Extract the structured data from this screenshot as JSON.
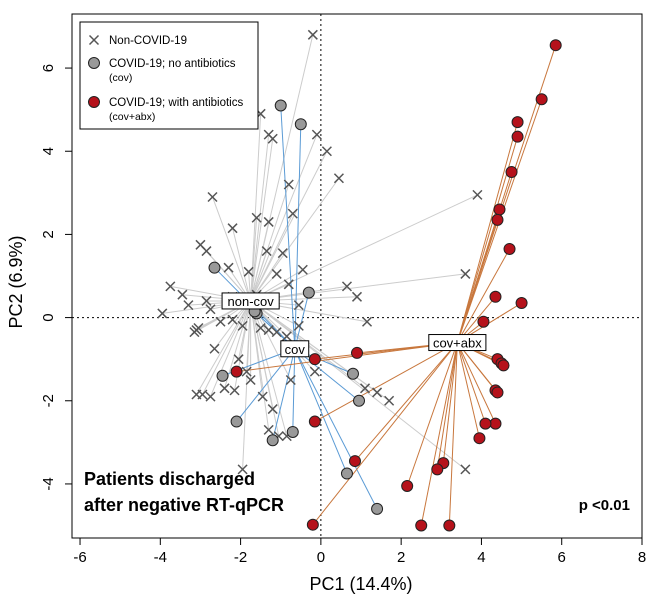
{
  "chart_data": {
    "type": "scatter",
    "xlabel": "PC1 (14.4%)",
    "ylabel": "PC2 (6.9%)",
    "xlim": [
      -6.2,
      8.0
    ],
    "ylim": [
      -5.3,
      7.3
    ],
    "xticks": [
      -6,
      -4,
      -2,
      0,
      2,
      4,
      6,
      8
    ],
    "yticks": [
      -4,
      -2,
      0,
      2,
      4,
      6
    ],
    "reference_lines": {
      "x": 0,
      "y": 0,
      "style": "dotted"
    },
    "annotation": "Patients discharged\nafter negative RT-qPCR",
    "annotation_lines": [
      "Patients discharged",
      "after negative RT-qPCR"
    ],
    "pvalue": "p <0.01",
    "legend": {
      "placement": "top-left",
      "entries": [
        {
          "label": "Non-COVID-19",
          "marker": "x"
        },
        {
          "label": "COVID-19; no antibiotics\n(cov)",
          "marker": "gray-circle"
        },
        {
          "label": "COVID-19; with antibiotics\n(cov+abx)",
          "marker": "red-circle"
        }
      ]
    },
    "series": [
      {
        "name": "Non-COVID-19",
        "marker": "x",
        "color": "#555555",
        "line_color": "#cccccc",
        "centroid": {
          "label": "non-cov",
          "x": -1.75,
          "y": 0.4
        },
        "points": [
          [
            -0.2,
            6.8
          ],
          [
            -1.5,
            4.9
          ],
          [
            -1.3,
            4.4
          ],
          [
            -1.2,
            4.3
          ],
          [
            -0.1,
            4.4
          ],
          [
            0.15,
            4.0
          ],
          [
            0.45,
            3.35
          ],
          [
            -0.8,
            3.2
          ],
          [
            -2.7,
            2.9
          ],
          [
            -1.6,
            2.4
          ],
          [
            -1.3,
            2.3
          ],
          [
            -0.7,
            2.5
          ],
          [
            -2.2,
            2.15
          ],
          [
            -1.35,
            1.6
          ],
          [
            -0.95,
            1.55
          ],
          [
            -3.0,
            1.75
          ],
          [
            -2.85,
            1.6
          ],
          [
            -2.3,
            1.2
          ],
          [
            -1.8,
            1.1
          ],
          [
            -1.1,
            1.05
          ],
          [
            -0.45,
            1.15
          ],
          [
            -3.75,
            0.75
          ],
          [
            -3.45,
            0.55
          ],
          [
            -3.3,
            0.3
          ],
          [
            -2.85,
            0.4
          ],
          [
            -2.75,
            0.2
          ],
          [
            -2.2,
            0.5
          ],
          [
            -1.9,
            0.35
          ],
          [
            -1.6,
            0.55
          ],
          [
            -0.8,
            0.8
          ],
          [
            -0.55,
            0.3
          ],
          [
            -3.95,
            0.1
          ],
          [
            -3.1,
            -0.3
          ],
          [
            -3.15,
            -0.35
          ],
          [
            -3.05,
            -0.25
          ],
          [
            -2.5,
            -0.1
          ],
          [
            -2.2,
            -0.05
          ],
          [
            -1.95,
            -0.2
          ],
          [
            -1.5,
            -0.25
          ],
          [
            -1.3,
            -0.3
          ],
          [
            -1.1,
            -0.35
          ],
          [
            -0.85,
            -0.45
          ],
          [
            -0.55,
            -0.2
          ],
          [
            -2.65,
            -0.75
          ],
          [
            -2.05,
            -1.0
          ],
          [
            -1.85,
            -1.3
          ],
          [
            -1.75,
            -1.5
          ],
          [
            -2.4,
            -1.7
          ],
          [
            -2.15,
            -1.75
          ],
          [
            -2.95,
            -1.85
          ],
          [
            -3.1,
            -1.85
          ],
          [
            -2.75,
            -1.9
          ],
          [
            -1.45,
            -1.9
          ],
          [
            -1.2,
            -2.2
          ],
          [
            -1.3,
            -2.7
          ],
          [
            -1.05,
            -2.85
          ],
          [
            -0.85,
            -2.85
          ],
          [
            -1.95,
            -3.65
          ],
          [
            -0.75,
            -1.5
          ],
          [
            -0.15,
            -1.3
          ],
          [
            0.65,
            0.75
          ],
          [
            0.9,
            0.5
          ],
          [
            1.15,
            -0.1
          ],
          [
            1.1,
            -1.7
          ],
          [
            1.4,
            -1.8
          ],
          [
            1.7,
            -2.0
          ],
          [
            3.9,
            2.95
          ],
          [
            3.6,
            1.05
          ],
          [
            3.6,
            -3.65
          ]
        ]
      },
      {
        "name": "COVID-19; no antibiotics",
        "marker": "gray-circle",
        "color": "#999999",
        "line_color": "#5b9bd5",
        "centroid": {
          "label": "cov",
          "x": -0.65,
          "y": -0.75
        },
        "points": [
          [
            -1.0,
            5.1
          ],
          [
            -0.5,
            4.65
          ],
          [
            -2.65,
            1.2
          ],
          [
            -0.3,
            0.6
          ],
          [
            -1.6,
            0.1
          ],
          [
            -1.65,
            0.15
          ],
          [
            -2.45,
            -1.4
          ],
          [
            -2.1,
            -2.5
          ],
          [
            -1.2,
            -2.95
          ],
          [
            -0.7,
            -2.75
          ],
          [
            0.8,
            -1.35
          ],
          [
            0.95,
            -2.0
          ],
          [
            0.65,
            -3.75
          ],
          [
            1.4,
            -4.6
          ]
        ]
      },
      {
        "name": "COVID-19; with antibiotics",
        "marker": "red-circle",
        "color": "#b5121b",
        "line_color": "#c8773d",
        "centroid": {
          "label": "cov+abx",
          "x": 3.4,
          "y": -0.6
        },
        "points": [
          [
            5.85,
            6.55
          ],
          [
            5.5,
            5.25
          ],
          [
            4.9,
            4.7
          ],
          [
            4.9,
            4.35
          ],
          [
            4.75,
            3.5
          ],
          [
            4.45,
            2.6
          ],
          [
            4.4,
            2.35
          ],
          [
            4.7,
            1.65
          ],
          [
            5.0,
            0.35
          ],
          [
            4.35,
            0.5
          ],
          [
            4.05,
            -0.1
          ],
          [
            4.4,
            -1.0
          ],
          [
            4.5,
            -1.1
          ],
          [
            4.55,
            -1.15
          ],
          [
            4.35,
            -1.75
          ],
          [
            4.4,
            -1.8
          ],
          [
            4.35,
            -2.55
          ],
          [
            4.1,
            -2.55
          ],
          [
            3.95,
            -2.9
          ],
          [
            3.05,
            -3.5
          ],
          [
            2.9,
            -3.65
          ],
          [
            2.15,
            -4.05
          ],
          [
            2.5,
            -5.0
          ],
          [
            3.2,
            -5.0
          ],
          [
            -2.1,
            -1.3
          ],
          [
            -0.15,
            -1.0
          ],
          [
            -0.15,
            -2.5
          ],
          [
            0.9,
            -0.85
          ],
          [
            0.85,
            -3.45
          ],
          [
            -0.2,
            -4.98
          ]
        ]
      }
    ]
  }
}
